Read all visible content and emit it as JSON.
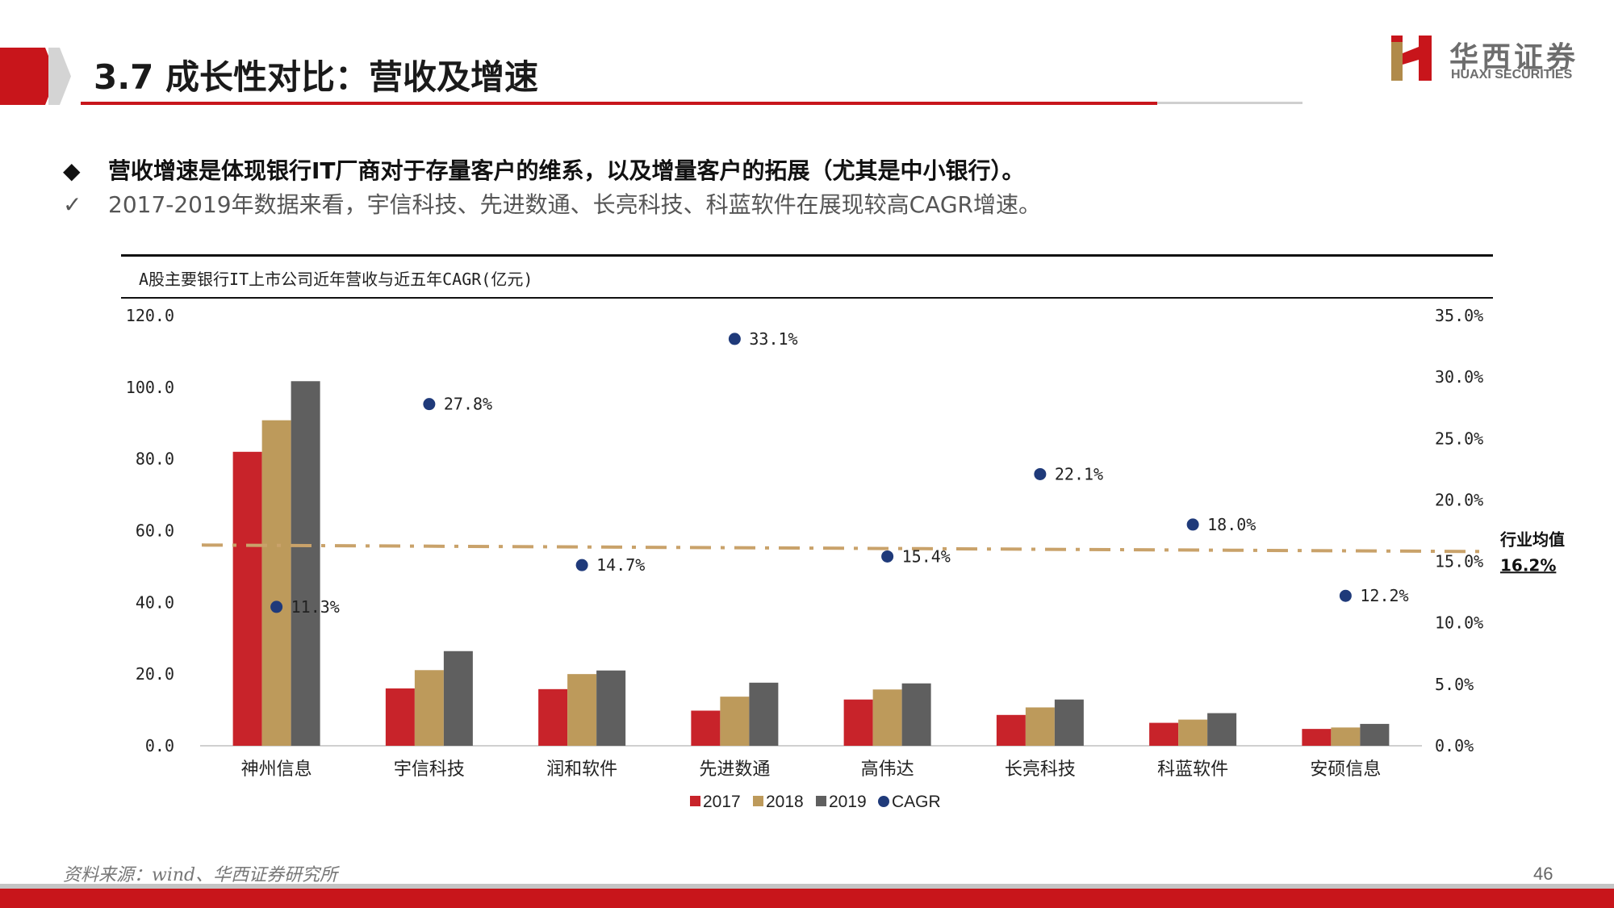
{
  "header": {
    "title": "3.7 成长性对比：营收及增速",
    "logo_cn": "华西证券",
    "logo_en": "HUAXI SECURITIES"
  },
  "bullets": [
    {
      "mark": "◆",
      "text": "营收增速是体现银行IT厂商对于存量客户的维系，以及增量客户的拓展（尤其是中小银行）。"
    },
    {
      "mark": "✓",
      "text": "2017-2019年数据来看，宇信科技、先进数通、长亮科技、科蓝软件在展现较高CAGR增速。"
    }
  ],
  "chart_data": {
    "type": "bar",
    "title": "A股主要银行IT上市公司近年营收与近五年CAGR(亿元)",
    "categories": [
      "神州信息",
      "宇信科技",
      "润和软件",
      "先进数通",
      "高伟达",
      "长亮科技",
      "科蓝软件",
      "安硕信息"
    ],
    "series": [
      {
        "name": "2017",
        "color": "#c8232a",
        "values": [
          82.0,
          16.0,
          15.8,
          9.8,
          12.9,
          8.6,
          6.4,
          4.7
        ]
      },
      {
        "name": "2018",
        "color": "#bd9a5b",
        "values": [
          90.8,
          21.1,
          20.0,
          13.7,
          15.7,
          10.7,
          7.3,
          5.1
        ]
      },
      {
        "name": "2019",
        "color": "#5f5f5f",
        "values": [
          101.7,
          26.4,
          21.0,
          17.6,
          17.4,
          12.9,
          9.1,
          6.1
        ]
      }
    ],
    "cagr": {
      "name": "CAGR",
      "color": "#1f3a7a",
      "values": [
        11.3,
        27.8,
        14.7,
        33.1,
        15.4,
        22.1,
        18.0,
        12.2
      ],
      "labels": [
        "11.3%",
        "27.8%",
        "14.7%",
        "33.1%",
        "15.4%",
        "22.1%",
        "18.0%",
        "12.2%"
      ]
    },
    "industry_avg": {
      "label": "行业均值",
      "value_label": "16.2%",
      "value": 16.2,
      "color": "#c9a26a"
    },
    "y_left": {
      "min": 0,
      "max": 120,
      "ticks": [
        "0.0",
        "20.0",
        "40.0",
        "60.0",
        "80.0",
        "100.0",
        "120.0"
      ]
    },
    "y_right": {
      "min": 0,
      "max": 35,
      "ticks": [
        "0.0%",
        "5.0%",
        "10.0%",
        "15.0%",
        "20.0%",
        "25.0%",
        "30.0%",
        "35.0%"
      ]
    },
    "legend_position": "bottom",
    "grid": false
  },
  "footer": {
    "source": "资料来源：wind、华西证券研究所",
    "page_number": "46"
  }
}
